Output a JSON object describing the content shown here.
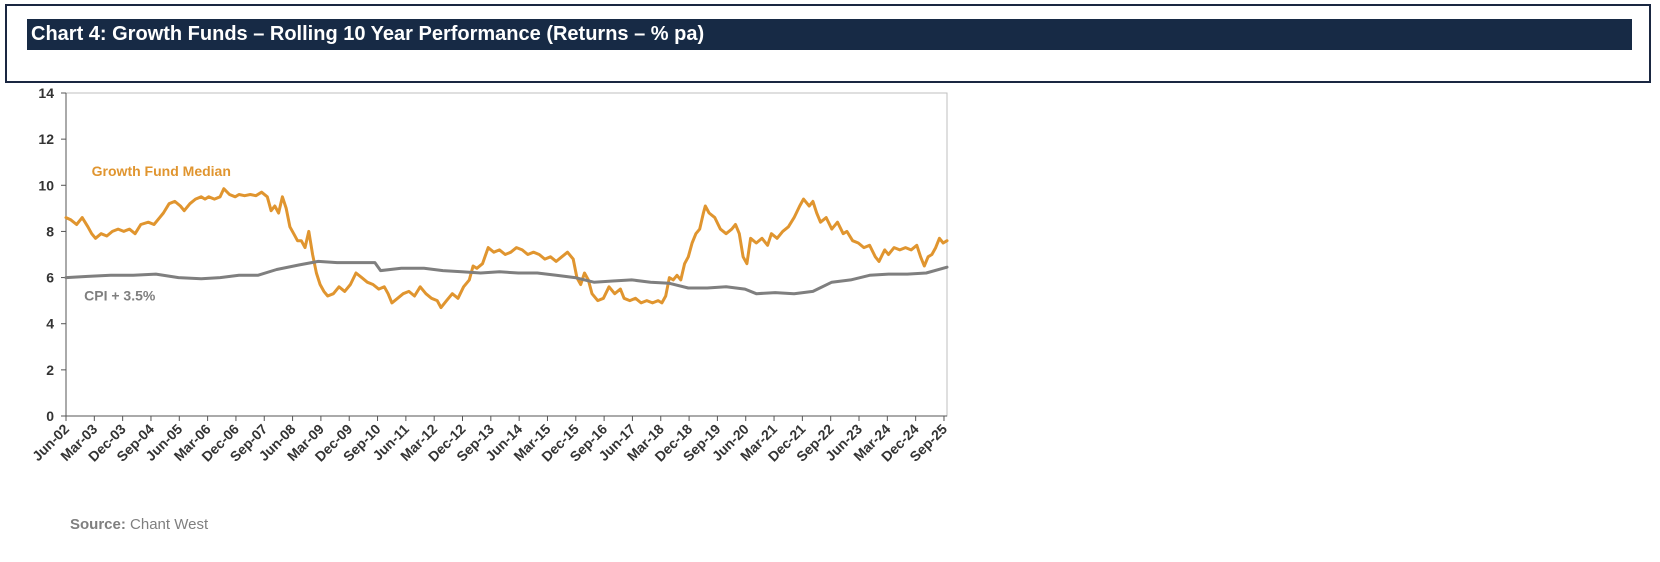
{
  "header": {
    "title": "Chart 4:  Growth Funds – Rolling 10 Year Performance (Returns – % pa)"
  },
  "source": {
    "label": "Source:",
    "text": "Chant West"
  },
  "colors": {
    "header_bg": "#172a45",
    "growth": "#e0952f",
    "cpi": "#7f7f7f"
  },
  "chart_data": {
    "type": "line",
    "ylim": [
      0,
      14
    ],
    "yticks": [
      0,
      2,
      4,
      6,
      8,
      10,
      12,
      14
    ],
    "xlim": [
      2002.42,
      2025.75
    ],
    "xticks": [
      {
        "label": "Jun-02",
        "x": 2002.42
      },
      {
        "label": "Mar-03",
        "x": 2003.17
      },
      {
        "label": "Dec-03",
        "x": 2003.92
      },
      {
        "label": "Sep-04",
        "x": 2004.67
      },
      {
        "label": "Jun-05",
        "x": 2005.42
      },
      {
        "label": "Mar-06",
        "x": 2006.17
      },
      {
        "label": "Dec-06",
        "x": 2006.92
      },
      {
        "label": "Sep-07",
        "x": 2007.67
      },
      {
        "label": "Jun-08",
        "x": 2008.42
      },
      {
        "label": "Mar-09",
        "x": 2009.17
      },
      {
        "label": "Dec-09",
        "x": 2009.92
      },
      {
        "label": "Sep-10",
        "x": 2010.67
      },
      {
        "label": "Jun-11",
        "x": 2011.42
      },
      {
        "label": "Mar-12",
        "x": 2012.17
      },
      {
        "label": "Dec-12",
        "x": 2012.92
      },
      {
        "label": "Sep-13",
        "x": 2013.67
      },
      {
        "label": "Jun-14",
        "x": 2014.42
      },
      {
        "label": "Mar-15",
        "x": 2015.17
      },
      {
        "label": "Dec-15",
        "x": 2015.92
      },
      {
        "label": "Sep-16",
        "x": 2016.67
      },
      {
        "label": "Jun-17",
        "x": 2017.42
      },
      {
        "label": "Mar-18",
        "x": 2018.17
      },
      {
        "label": "Dec-18",
        "x": 2018.92
      },
      {
        "label": "Sep-19",
        "x": 2019.67
      },
      {
        "label": "Jun-20",
        "x": 2020.42
      },
      {
        "label": "Mar-21",
        "x": 2021.17
      },
      {
        "label": "Dec-21",
        "x": 2021.92
      },
      {
        "label": "Sep-22",
        "x": 2022.67
      },
      {
        "label": "Jun-23",
        "x": 2023.42
      },
      {
        "label": "Mar-24",
        "x": 2024.17
      },
      {
        "label": "Dec-24",
        "x": 2024.92
      },
      {
        "label": "Sep-25",
        "x": 2025.67
      }
    ],
    "series": [
      {
        "name": "Growth Fund Median",
        "color": "#e0952f",
        "points": [
          [
            2002.42,
            8.6
          ],
          [
            2002.55,
            8.5
          ],
          [
            2002.7,
            8.3
          ],
          [
            2002.85,
            8.6
          ],
          [
            2003.0,
            8.2
          ],
          [
            2003.1,
            7.9
          ],
          [
            2003.2,
            7.7
          ],
          [
            2003.35,
            7.9
          ],
          [
            2003.5,
            7.8
          ],
          [
            2003.65,
            8.0
          ],
          [
            2003.8,
            8.1
          ],
          [
            2003.95,
            8.0
          ],
          [
            2004.1,
            8.1
          ],
          [
            2004.25,
            7.9
          ],
          [
            2004.4,
            8.3
          ],
          [
            2004.6,
            8.4
          ],
          [
            2004.75,
            8.3
          ],
          [
            2004.9,
            8.6
          ],
          [
            2005.0,
            8.8
          ],
          [
            2005.15,
            9.2
          ],
          [
            2005.3,
            9.3
          ],
          [
            2005.45,
            9.1
          ],
          [
            2005.55,
            8.9
          ],
          [
            2005.7,
            9.2
          ],
          [
            2005.85,
            9.4
          ],
          [
            2006.0,
            9.5
          ],
          [
            2006.1,
            9.4
          ],
          [
            2006.2,
            9.5
          ],
          [
            2006.35,
            9.4
          ],
          [
            2006.5,
            9.5
          ],
          [
            2006.6,
            9.85
          ],
          [
            2006.75,
            9.6
          ],
          [
            2006.9,
            9.5
          ],
          [
            2007.0,
            9.6
          ],
          [
            2007.15,
            9.55
          ],
          [
            2007.3,
            9.6
          ],
          [
            2007.45,
            9.55
          ],
          [
            2007.6,
            9.7
          ],
          [
            2007.75,
            9.5
          ],
          [
            2007.85,
            8.9
          ],
          [
            2007.95,
            9.1
          ],
          [
            2008.05,
            8.8
          ],
          [
            2008.15,
            9.5
          ],
          [
            2008.25,
            9.0
          ],
          [
            2008.35,
            8.2
          ],
          [
            2008.45,
            7.9
          ],
          [
            2008.55,
            7.6
          ],
          [
            2008.65,
            7.6
          ],
          [
            2008.75,
            7.3
          ],
          [
            2008.85,
            8.0
          ],
          [
            2008.95,
            7.0
          ],
          [
            2009.05,
            6.2
          ],
          [
            2009.15,
            5.7
          ],
          [
            2009.25,
            5.4
          ],
          [
            2009.35,
            5.2
          ],
          [
            2009.5,
            5.3
          ],
          [
            2009.65,
            5.6
          ],
          [
            2009.8,
            5.4
          ],
          [
            2009.95,
            5.7
          ],
          [
            2010.1,
            6.2
          ],
          [
            2010.25,
            6.0
          ],
          [
            2010.4,
            5.8
          ],
          [
            2010.55,
            5.7
          ],
          [
            2010.7,
            5.5
          ],
          [
            2010.85,
            5.6
          ],
          [
            2010.95,
            5.3
          ],
          [
            2011.05,
            4.9
          ],
          [
            2011.2,
            5.1
          ],
          [
            2011.35,
            5.3
          ],
          [
            2011.5,
            5.4
          ],
          [
            2011.65,
            5.2
          ],
          [
            2011.8,
            5.6
          ],
          [
            2011.95,
            5.3
          ],
          [
            2012.1,
            5.1
          ],
          [
            2012.25,
            5.0
          ],
          [
            2012.35,
            4.7
          ],
          [
            2012.5,
            5.0
          ],
          [
            2012.65,
            5.3
          ],
          [
            2012.8,
            5.1
          ],
          [
            2012.95,
            5.6
          ],
          [
            2013.1,
            5.9
          ],
          [
            2013.2,
            6.5
          ],
          [
            2013.3,
            6.4
          ],
          [
            2013.45,
            6.6
          ],
          [
            2013.6,
            7.3
          ],
          [
            2013.75,
            7.1
          ],
          [
            2013.9,
            7.2
          ],
          [
            2014.05,
            7.0
          ],
          [
            2014.2,
            7.1
          ],
          [
            2014.35,
            7.3
          ],
          [
            2014.5,
            7.2
          ],
          [
            2014.65,
            7.0
          ],
          [
            2014.8,
            7.1
          ],
          [
            2014.95,
            7.0
          ],
          [
            2015.1,
            6.8
          ],
          [
            2015.25,
            6.9
          ],
          [
            2015.4,
            6.7
          ],
          [
            2015.55,
            6.9
          ],
          [
            2015.7,
            7.1
          ],
          [
            2015.85,
            6.8
          ],
          [
            2015.95,
            6.0
          ],
          [
            2016.05,
            5.7
          ],
          [
            2016.15,
            6.2
          ],
          [
            2016.25,
            5.9
          ],
          [
            2016.35,
            5.3
          ],
          [
            2016.5,
            5.0
          ],
          [
            2016.65,
            5.1
          ],
          [
            2016.8,
            5.6
          ],
          [
            2016.95,
            5.3
          ],
          [
            2017.1,
            5.5
          ],
          [
            2017.2,
            5.1
          ],
          [
            2017.35,
            5.0
          ],
          [
            2017.5,
            5.1
          ],
          [
            2017.65,
            4.9
          ],
          [
            2017.8,
            5.0
          ],
          [
            2017.95,
            4.9
          ],
          [
            2018.1,
            5.0
          ],
          [
            2018.2,
            4.9
          ],
          [
            2018.3,
            5.2
          ],
          [
            2018.4,
            6.0
          ],
          [
            2018.5,
            5.9
          ],
          [
            2018.6,
            6.1
          ],
          [
            2018.7,
            5.9
          ],
          [
            2018.8,
            6.6
          ],
          [
            2018.9,
            6.9
          ],
          [
            2019.0,
            7.5
          ],
          [
            2019.1,
            7.9
          ],
          [
            2019.2,
            8.1
          ],
          [
            2019.3,
            8.8
          ],
          [
            2019.35,
            9.1
          ],
          [
            2019.45,
            8.8
          ],
          [
            2019.6,
            8.6
          ],
          [
            2019.75,
            8.1
          ],
          [
            2019.9,
            7.9
          ],
          [
            2020.05,
            8.1
          ],
          [
            2020.15,
            8.3
          ],
          [
            2020.25,
            7.9
          ],
          [
            2020.35,
            6.9
          ],
          [
            2020.45,
            6.6
          ],
          [
            2020.55,
            7.7
          ],
          [
            2020.7,
            7.5
          ],
          [
            2020.85,
            7.7
          ],
          [
            2021.0,
            7.4
          ],
          [
            2021.1,
            7.9
          ],
          [
            2021.25,
            7.7
          ],
          [
            2021.4,
            8.0
          ],
          [
            2021.55,
            8.2
          ],
          [
            2021.7,
            8.6
          ],
          [
            2021.85,
            9.1
          ],
          [
            2021.95,
            9.4
          ],
          [
            2022.1,
            9.1
          ],
          [
            2022.2,
            9.3
          ],
          [
            2022.3,
            8.8
          ],
          [
            2022.4,
            8.4
          ],
          [
            2022.55,
            8.6
          ],
          [
            2022.7,
            8.1
          ],
          [
            2022.85,
            8.4
          ],
          [
            2023.0,
            7.9
          ],
          [
            2023.1,
            8.0
          ],
          [
            2023.25,
            7.6
          ],
          [
            2023.4,
            7.5
          ],
          [
            2023.55,
            7.3
          ],
          [
            2023.7,
            7.4
          ],
          [
            2023.85,
            6.9
          ],
          [
            2023.95,
            6.7
          ],
          [
            2024.1,
            7.2
          ],
          [
            2024.2,
            7.0
          ],
          [
            2024.35,
            7.3
          ],
          [
            2024.5,
            7.2
          ],
          [
            2024.65,
            7.3
          ],
          [
            2024.8,
            7.2
          ],
          [
            2024.95,
            7.4
          ],
          [
            2025.05,
            6.9
          ],
          [
            2025.15,
            6.5
          ],
          [
            2025.25,
            6.9
          ],
          [
            2025.35,
            7.0
          ],
          [
            2025.45,
            7.3
          ],
          [
            2025.55,
            7.7
          ],
          [
            2025.65,
            7.5
          ],
          [
            2025.75,
            7.6
          ]
        ]
      },
      {
        "name": "CPI + 3.5%",
        "color": "#7f7f7f",
        "points": [
          [
            2002.42,
            6.0
          ],
          [
            2003.0,
            6.05
          ],
          [
            2003.6,
            6.1
          ],
          [
            2004.2,
            6.1
          ],
          [
            2004.8,
            6.15
          ],
          [
            2005.4,
            6.0
          ],
          [
            2006.0,
            5.95
          ],
          [
            2006.5,
            6.0
          ],
          [
            2007.0,
            6.1
          ],
          [
            2007.5,
            6.1
          ],
          [
            2008.0,
            6.35
          ],
          [
            2008.6,
            6.55
          ],
          [
            2009.1,
            6.7
          ],
          [
            2009.6,
            6.65
          ],
          [
            2010.1,
            6.65
          ],
          [
            2010.6,
            6.65
          ],
          [
            2010.75,
            6.3
          ],
          [
            2011.3,
            6.4
          ],
          [
            2011.9,
            6.4
          ],
          [
            2012.4,
            6.3
          ],
          [
            2012.9,
            6.25
          ],
          [
            2013.4,
            6.2
          ],
          [
            2013.9,
            6.25
          ],
          [
            2014.4,
            6.2
          ],
          [
            2014.9,
            6.2
          ],
          [
            2015.4,
            6.1
          ],
          [
            2015.9,
            6.0
          ],
          [
            2016.4,
            5.8
          ],
          [
            2016.9,
            5.85
          ],
          [
            2017.4,
            5.9
          ],
          [
            2017.9,
            5.8
          ],
          [
            2018.4,
            5.75
          ],
          [
            2018.9,
            5.55
          ],
          [
            2019.4,
            5.55
          ],
          [
            2019.9,
            5.6
          ],
          [
            2020.4,
            5.5
          ],
          [
            2020.7,
            5.3
          ],
          [
            2021.2,
            5.35
          ],
          [
            2021.7,
            5.3
          ],
          [
            2022.2,
            5.4
          ],
          [
            2022.7,
            5.8
          ],
          [
            2023.2,
            5.9
          ],
          [
            2023.7,
            6.1
          ],
          [
            2024.2,
            6.15
          ],
          [
            2024.7,
            6.15
          ],
          [
            2025.2,
            6.2
          ],
          [
            2025.75,
            6.45
          ]
        ]
      }
    ],
    "annotations": [
      {
        "text": "Growth Fund Median",
        "x": 2003.1,
        "y": 10.4,
        "color": "#e0952f"
      },
      {
        "text": "CPI + 3.5%",
        "x": 2002.9,
        "y": 5.0,
        "color": "#7f7f7f"
      }
    ]
  }
}
